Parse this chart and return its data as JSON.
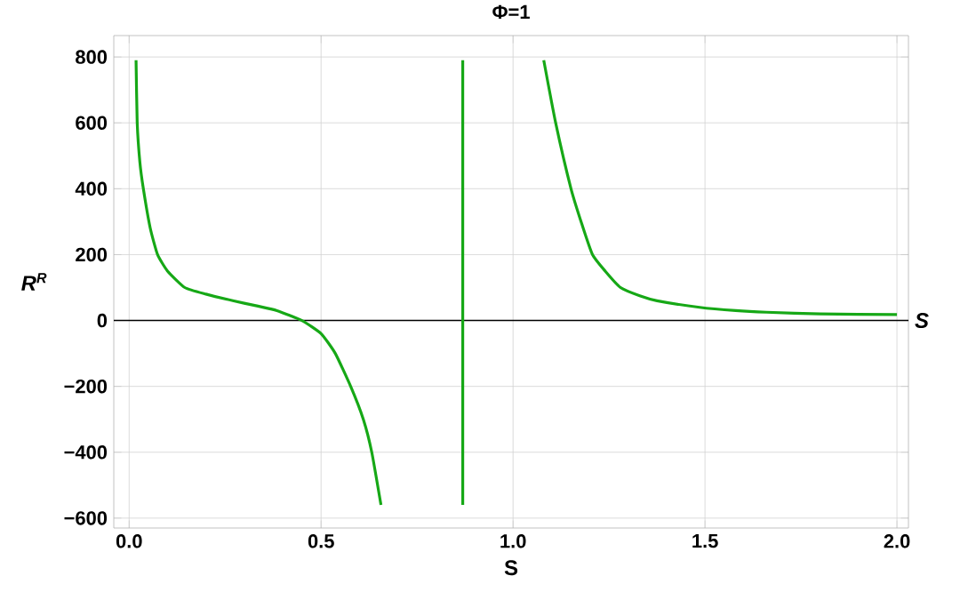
{
  "chart_data": {
    "type": "line",
    "title": "Φ=1",
    "xlabel": "S",
    "ylabel": "R$^{R}$",
    "series": [
      {
        "color": "#16a816",
        "x": [
          0.018,
          0.021,
          0.028,
          0.037,
          0.055,
          0.074,
          0.1,
          0.145,
          0.2,
          0.27,
          0.33,
          0.385,
          0.45,
          0.5,
          0.537,
          0.577,
          0.61,
          0.632,
          0.656
        ],
        "values": [
          790,
          600,
          480,
          400,
          280,
          200,
          150,
          100,
          80,
          60,
          45,
          30,
          0,
          -40,
          -100,
          -200,
          -300,
          -400,
          -560
        ]
      },
      {
        "color": "#16a816",
        "x": [
          0.869,
          0.869
        ],
        "values": [
          -560,
          790
        ]
      },
      {
        "color": "#16a816",
        "x": [
          1.08,
          1.111,
          1.151,
          1.18,
          1.207,
          1.24,
          1.28,
          1.33,
          1.375,
          1.486,
          1.58,
          1.66,
          1.8,
          2.0
        ],
        "values": [
          790,
          600,
          400,
          290,
          200,
          150,
          100,
          75,
          60,
          40,
          30,
          25,
          20,
          18
        ]
      }
    ],
    "xlim": [
      -0.04,
      2.03
    ],
    "ylim": [
      -630,
      865
    ],
    "xticks": [
      {
        "value": 0,
        "label": "0.0"
      },
      {
        "value": 0.5,
        "label": "0.5"
      },
      {
        "value": 1,
        "label": "1.0"
      },
      {
        "value": 1.5,
        "label": "1.5"
      },
      {
        "value": 2,
        "label": "2.0"
      }
    ],
    "yticks": [
      {
        "value": -600,
        "label": "−600"
      },
      {
        "value": -400,
        "label": "−400"
      },
      {
        "value": -200,
        "label": "−200"
      },
      0,
      200,
      400,
      600,
      800
    ],
    "grid": true,
    "line_style": "solid",
    "marker": "none",
    "ref_lines": [
      {
        "axis": "y",
        "value": 0,
        "label": "S",
        "color": "#000000"
      }
    ]
  }
}
